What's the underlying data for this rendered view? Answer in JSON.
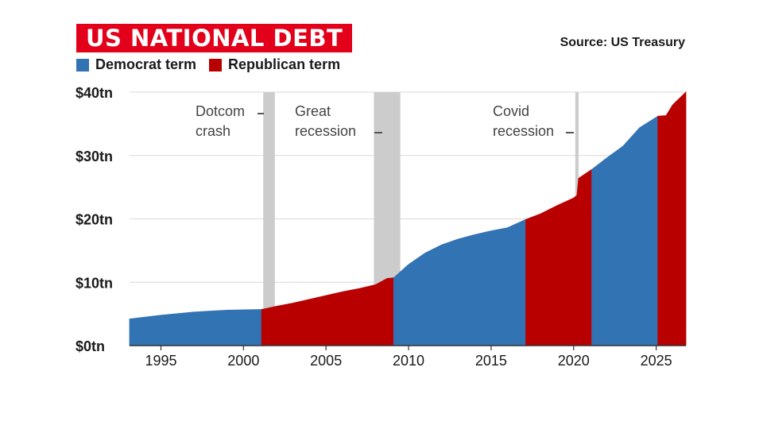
{
  "chart_data": {
    "type": "area",
    "title": "US NATIONAL DEBT",
    "source": "Source: US Treasury",
    "legend": [
      {
        "label": "Democrat term",
        "color": "#3273b4"
      },
      {
        "label": "Republican term",
        "color": "#b80000"
      }
    ],
    "legend_placement": "top-left",
    "xlim": [
      1993.1,
      2026.8
    ],
    "ylim": [
      0,
      40
    ],
    "x_ticks": [
      1995,
      2000,
      2005,
      2010,
      2015,
      2020,
      2025
    ],
    "x_tick_labels": [
      "1995",
      "2000",
      "2005",
      "2010",
      "2015",
      "2020",
      "2025"
    ],
    "y_ticks": [
      0,
      10,
      20,
      30,
      40
    ],
    "y_tick_labels": [
      "$0tn",
      "$10tn",
      "$20tn",
      "$30tn",
      "$40tn"
    ],
    "grid": true,
    "units": "trillions of US dollars",
    "series": [
      {
        "party": "Democrat",
        "color": "#3273b4",
        "points": [
          [
            1993.1,
            4.2
          ],
          [
            1995,
            4.8
          ],
          [
            1997,
            5.3
          ],
          [
            1999,
            5.6
          ],
          [
            2001.1,
            5.7
          ]
        ]
      },
      {
        "party": "Republican",
        "color": "#b80000",
        "points": [
          [
            2001.1,
            5.7
          ],
          [
            2002,
            6.2
          ],
          [
            2003,
            6.7
          ],
          [
            2004,
            7.3
          ],
          [
            2005,
            7.9
          ],
          [
            2006,
            8.5
          ],
          [
            2007,
            9.0
          ],
          [
            2008,
            9.6
          ],
          [
            2008.7,
            10.6
          ],
          [
            2009.1,
            10.7
          ]
        ]
      },
      {
        "party": "Democrat",
        "color": "#3273b4",
        "points": [
          [
            2009.1,
            10.7
          ],
          [
            2010,
            12.8
          ],
          [
            2011,
            14.6
          ],
          [
            2012,
            15.9
          ],
          [
            2013,
            16.8
          ],
          [
            2014,
            17.5
          ],
          [
            2015,
            18.1
          ],
          [
            2016,
            18.6
          ],
          [
            2017.1,
            19.9
          ]
        ]
      },
      {
        "party": "Republican",
        "color": "#b80000",
        "points": [
          [
            2017.1,
            19.9
          ],
          [
            2018,
            20.8
          ],
          [
            2019,
            22.1
          ],
          [
            2020,
            23.3
          ],
          [
            2020.2,
            23.7
          ],
          [
            2020.3,
            26.4
          ],
          [
            2021.1,
            27.8
          ]
        ]
      },
      {
        "party": "Democrat",
        "color": "#3273b4",
        "points": [
          [
            2021.1,
            27.8
          ],
          [
            2022,
            29.6
          ],
          [
            2023,
            31.5
          ],
          [
            2024,
            34.4
          ],
          [
            2025.1,
            36.2
          ]
        ]
      },
      {
        "party": "Republican",
        "color": "#b80000",
        "points": [
          [
            2025.1,
            36.2
          ],
          [
            2025.6,
            36.3
          ],
          [
            2026,
            38.0
          ],
          [
            2026.8,
            40.0
          ]
        ]
      }
    ],
    "recessions": [
      {
        "label_lines": [
          "Dotcom",
          "crash"
        ],
        "x_start": 2001.2,
        "x_end": 2001.9
      },
      {
        "label_lines": [
          "Great",
          "recession"
        ],
        "x_start": 2007.9,
        "x_end": 2009.5
      },
      {
        "label_lines": [
          "Covid",
          "recession"
        ],
        "x_start": 2020.1,
        "x_end": 2020.3
      }
    ],
    "recession_color": "#cccccc"
  }
}
